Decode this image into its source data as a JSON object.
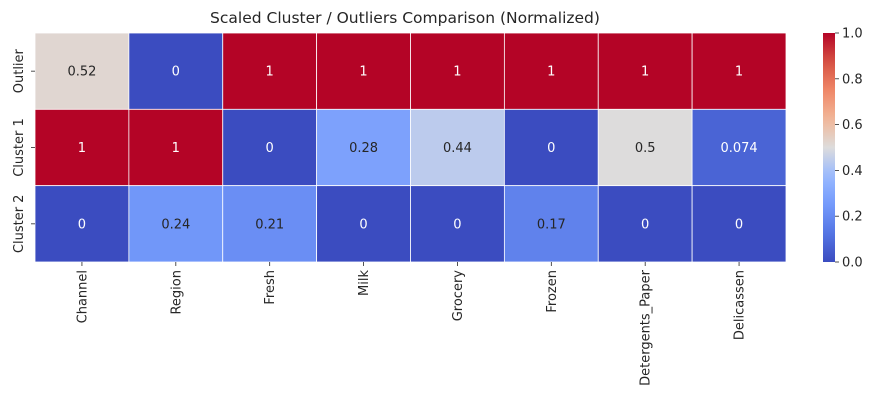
{
  "chart_data": {
    "type": "heatmap",
    "title": "Scaled Cluster / Outliers Comparison (Normalized)",
    "x_categories": [
      "Channel",
      "Region",
      "Fresh",
      "Milk",
      "Grocery",
      "Frozen",
      "Detergents_Paper",
      "Delicassen"
    ],
    "y_categories": [
      "Outlier",
      "Cluster 1",
      "Cluster 2"
    ],
    "values": [
      [
        0.52,
        0,
        1,
        1,
        1,
        1,
        1,
        1
      ],
      [
        1,
        1,
        0,
        0.28,
        0.44,
        0,
        0.5,
        0.074
      ],
      [
        0,
        0.24,
        0.21,
        0,
        0,
        0.17,
        0,
        0
      ]
    ],
    "value_labels": [
      [
        "0.52",
        "0",
        "1",
        "1",
        "1",
        "1",
        "1",
        "1"
      ],
      [
        "1",
        "1",
        "0",
        "0.28",
        "0.44",
        "0",
        "0.5",
        "0.074"
      ],
      [
        "0",
        "0.24",
        "0.21",
        "0",
        "0",
        "0.17",
        "0",
        "0"
      ]
    ],
    "colormap": "coolwarm",
    "colorbar": {
      "range": [
        0,
        1
      ],
      "ticks": [
        0.0,
        0.2,
        0.4,
        0.6,
        0.8,
        1.0
      ],
      "tick_labels": [
        "0.0",
        "0.2",
        "0.4",
        "0.6",
        "0.8",
        "1.0"
      ]
    },
    "xlabel": "",
    "ylabel": ""
  }
}
